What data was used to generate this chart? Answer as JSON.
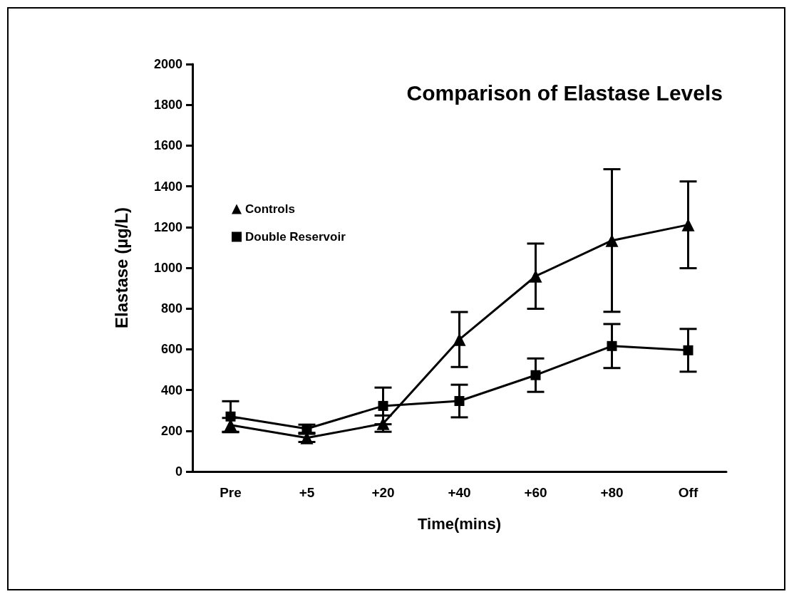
{
  "chart_data": {
    "type": "line",
    "title": "Comparison of Elastase Levels",
    "xlabel": "Time(mins)",
    "ylabel": "Elastase (µg/L)",
    "categories": [
      "Pre",
      "+5",
      "+20",
      "+40",
      "+60",
      "+80",
      "Off"
    ],
    "series": [
      {
        "name": "Controls",
        "color": "#000000",
        "marker": "triangle",
        "values": [
          228,
          165,
          235,
          648,
          959,
          1134,
          1211
        ],
        "errors": [
          35,
          20,
          40,
          135,
          160,
          350,
          213
        ]
      },
      {
        "name": "Double Reservoir",
        "color": "#000000",
        "marker": "square",
        "values": [
          270,
          210,
          322,
          346,
          473,
          616,
          595
        ],
        "errors": [
          75,
          20,
          90,
          80,
          82,
          108,
          105
        ]
      }
    ],
    "ylim": [
      0,
      2000
    ],
    "yticks": [
      0,
      200,
      400,
      600,
      800,
      1000,
      1200,
      1400,
      1600,
      1800,
      2000
    ],
    "grid": false,
    "legend": "top left",
    "line_style": "solid"
  }
}
